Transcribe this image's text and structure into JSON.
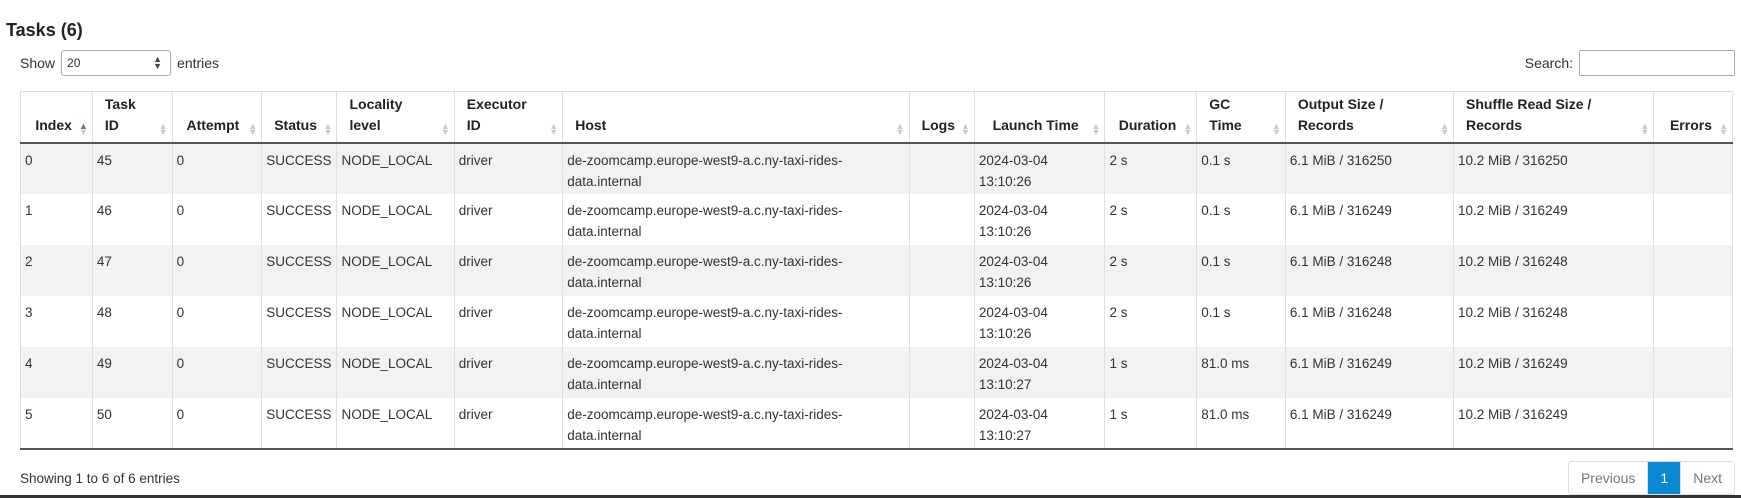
{
  "title": "Tasks (6)",
  "length_menu": {
    "show_label": "Show",
    "value": "20",
    "entries_label": "entries"
  },
  "search": {
    "label": "Search:",
    "value": ""
  },
  "columns": [
    "Index",
    "Task ID",
    "Attempt",
    "Status",
    "Locality level",
    "Executor ID",
    "Host",
    "Logs",
    "Launch Time",
    "Duration",
    "GC Time",
    "Output Size / Records",
    "Shuffle Read Size / Records",
    "Errors"
  ],
  "sorted_column": "Index",
  "rows": [
    [
      "0",
      "45",
      "0",
      "SUCCESS",
      "NODE_LOCAL",
      "driver",
      "de-zoomcamp.europe-west9-a.c.ny-taxi-rides-data.internal",
      "",
      "2024-03-04 13:10:26",
      "2 s",
      "0.1 s",
      "6.1 MiB / 316250",
      "10.2 MiB / 316250",
      ""
    ],
    [
      "1",
      "46",
      "0",
      "SUCCESS",
      "NODE_LOCAL",
      "driver",
      "de-zoomcamp.europe-west9-a.c.ny-taxi-rides-data.internal",
      "",
      "2024-03-04 13:10:26",
      "2 s",
      "0.1 s",
      "6.1 MiB / 316249",
      "10.2 MiB / 316249",
      ""
    ],
    [
      "2",
      "47",
      "0",
      "SUCCESS",
      "NODE_LOCAL",
      "driver",
      "de-zoomcamp.europe-west9-a.c.ny-taxi-rides-data.internal",
      "",
      "2024-03-04 13:10:26",
      "2 s",
      "0.1 s",
      "6.1 MiB / 316248",
      "10.2 MiB / 316248",
      ""
    ],
    [
      "3",
      "48",
      "0",
      "SUCCESS",
      "NODE_LOCAL",
      "driver",
      "de-zoomcamp.europe-west9-a.c.ny-taxi-rides-data.internal",
      "",
      "2024-03-04 13:10:26",
      "2 s",
      "0.1 s",
      "6.1 MiB / 316248",
      "10.2 MiB / 316248",
      ""
    ],
    [
      "4",
      "49",
      "0",
      "SUCCESS",
      "NODE_LOCAL",
      "driver",
      "de-zoomcamp.europe-west9-a.c.ny-taxi-rides-data.internal",
      "",
      "2024-03-04 13:10:27",
      "1 s",
      "81.0 ms",
      "6.1 MiB / 316249",
      "10.2 MiB / 316249",
      ""
    ],
    [
      "5",
      "50",
      "0",
      "SUCCESS",
      "NODE_LOCAL",
      "driver",
      "de-zoomcamp.europe-west9-a.c.ny-taxi-rides-data.internal",
      "",
      "2024-03-04 13:10:27",
      "1 s",
      "81.0 ms",
      "6.1 MiB / 316249",
      "10.2 MiB / 316249",
      ""
    ]
  ],
  "footer": {
    "info": "Showing 1 to 6 of 6 entries",
    "previous": "Previous",
    "current_page": "1",
    "next": "Next"
  }
}
